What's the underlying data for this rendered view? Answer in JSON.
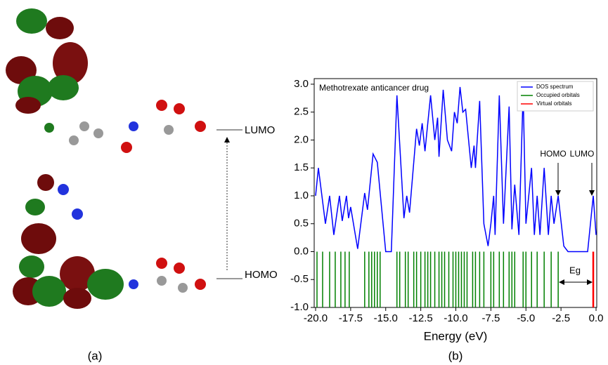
{
  "panels": [
    "(a)",
    "(b)"
  ],
  "levels": [
    "LUMO",
    "HOMO"
  ],
  "chart_data": {
    "type": "line",
    "title": "Methotrexate anticancer drug",
    "xlabel": "Energy (eV)",
    "xlim": [
      -20,
      0
    ],
    "xticks": [
      {
        "value": -20,
        "label": "-20.0"
      },
      {
        "value": -17.5,
        "label": "-17.5"
      },
      {
        "value": -15,
        "label": "-15.0"
      },
      {
        "value": -12.5,
        "label": "-12.5"
      },
      {
        "value": -10,
        "label": "-10.0"
      },
      {
        "value": -7.5,
        "label": "-7.5"
      },
      {
        "value": -5,
        "label": "-5.0"
      },
      {
        "value": -2.5,
        "label": "-2.5"
      },
      {
        "value": 0,
        "label": "0.0"
      }
    ],
    "ylim": [
      -1,
      3.1
    ],
    "yticks": [
      {
        "value": -1,
        "label": "-1.0"
      },
      {
        "value": -0.5,
        "label": "-0.5"
      },
      {
        "value": 0,
        "label": "0.0"
      },
      {
        "value": 0.5,
        "label": "0.5"
      },
      {
        "value": 1,
        "label": "1.0"
      },
      {
        "value": 1.5,
        "label": "1.5"
      },
      {
        "value": 2,
        "label": "2.0"
      },
      {
        "value": 2.5,
        "label": "2.5"
      },
      {
        "value": 3,
        "label": "3.0"
      }
    ],
    "legend": "upper right",
    "series": [
      {
        "name": "DOS spectrum",
        "color": "#0000ff",
        "x": [
          -20,
          -19.8,
          -19.3,
          -19.0,
          -18.7,
          -18.3,
          -18.1,
          -17.8,
          -17.65,
          -17.5,
          -17.0,
          -16.5,
          -16.3,
          -15.9,
          -15.6,
          -15.0,
          -14.6,
          -14.2,
          -13.7,
          -13.5,
          -13.3,
          -12.8,
          -12.6,
          -12.4,
          -12.2,
          -11.8,
          -11.5,
          -11.3,
          -11.2,
          -10.9,
          -10.6,
          -10.3,
          -10.1,
          -9.9,
          -9.7,
          -9.5,
          -9.3,
          -8.9,
          -8.7,
          -8.6,
          -8.3,
          -8.0,
          -7.7,
          -7.5,
          -7.3,
          -7.2,
          -6.9,
          -6.6,
          -6.2,
          -6.0,
          -5.8,
          -5.5,
          -5.2,
          -5.0,
          -4.6,
          -4.4,
          -4.2,
          -4.0,
          -3.7,
          -3.4,
          -3.2,
          -3.0,
          -2.7,
          -2.3,
          -2.0,
          -0.6,
          -0.2,
          0
        ],
        "values": [
          1.0,
          1.5,
          0.5,
          1.0,
          0.3,
          1.0,
          0.55,
          1.0,
          0.6,
          0.8,
          0.05,
          1.05,
          0.75,
          1.75,
          1.6,
          0,
          0,
          2.8,
          0.6,
          1.0,
          0.7,
          2.2,
          1.9,
          2.3,
          1.8,
          2.8,
          2.0,
          2.4,
          1.7,
          2.9,
          2.0,
          1.8,
          2.5,
          2.3,
          2.95,
          2.5,
          2.55,
          1.5,
          1.9,
          1.5,
          2.7,
          0.5,
          0.1,
          0.5,
          1.0,
          0.3,
          2.8,
          0.5,
          2.6,
          0.4,
          1.2,
          0.3,
          2.85,
          0.5,
          1.5,
          0.3,
          1.0,
          0.3,
          1.5,
          0.3,
          1.0,
          0.5,
          1.0,
          0.1,
          0,
          0,
          1.0,
          0.3
        ]
      },
      {
        "name": "Occupied orbitals",
        "color": "#008000",
        "x": [
          -19.9,
          -19.5,
          -19.0,
          -18.6,
          -18.2,
          -17.9,
          -17.6,
          -16.5,
          -16.2,
          -16.0,
          -15.8,
          -15.6,
          -15.4,
          -14.2,
          -14.0,
          -13.6,
          -13.4,
          -13.0,
          -12.8,
          -12.5,
          -12.2,
          -12.0,
          -11.8,
          -11.5,
          -11.2,
          -11.0,
          -10.8,
          -10.5,
          -10.2,
          -10.0,
          -9.8,
          -9.6,
          -9.4,
          -9.2,
          -8.8,
          -8.6,
          -8.3,
          -8.0,
          -7.5,
          -7.3,
          -6.9,
          -6.6,
          -6.2,
          -6.0,
          -5.8,
          -5.2,
          -5.0,
          -4.6,
          -4.2,
          -3.7,
          -3.2,
          -2.7
        ]
      },
      {
        "name": "Virtual orbitals",
        "color": "#ff0000",
        "x": [
          -0.2
        ]
      }
    ],
    "annotations": [
      "HOMO",
      "LUMO",
      "Eg"
    ]
  }
}
